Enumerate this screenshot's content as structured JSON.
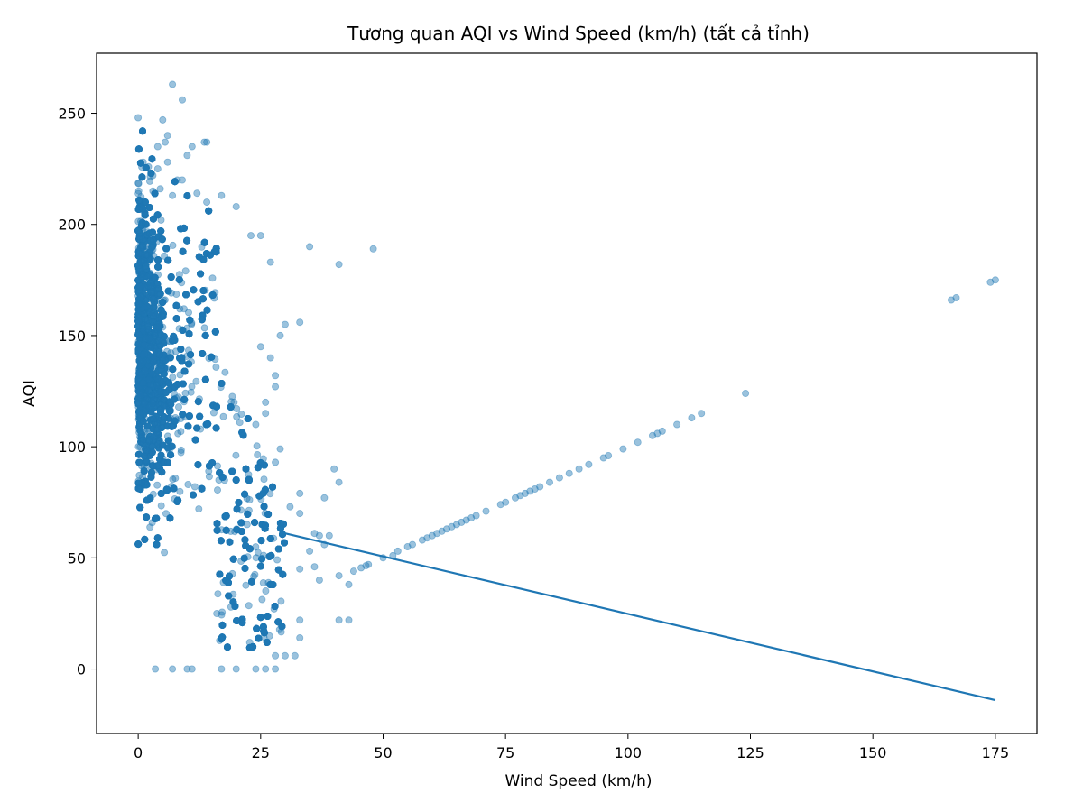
{
  "chart_data": {
    "type": "scatter",
    "title": "Tương quan AQI vs Wind Speed (km/h) (tất cả tỉnh)",
    "xlabel": "Wind Speed (km/h)",
    "ylabel": "AQI",
    "xlim": [
      -8.5,
      183.5
    ],
    "ylim": [
      -29,
      277
    ],
    "xticks": [
      0,
      25,
      50,
      75,
      100,
      125,
      150,
      175
    ],
    "yticks": [
      0,
      50,
      100,
      150,
      200,
      250
    ],
    "grid": false,
    "legend": "none",
    "point_color": "#1f77b4",
    "point_alpha": 0.45,
    "line_color": "#1f77b4",
    "trend_line": {
      "x": [
        30,
        175
      ],
      "y": [
        61,
        -14
      ]
    },
    "dense_cluster": {
      "x_range": [
        0,
        32
      ],
      "y_range": [
        0,
        265
      ],
      "estimated_points": 9000
    },
    "points": [
      [
        0,
        248
      ],
      [
        7,
        263
      ],
      [
        9,
        256
      ],
      [
        5,
        247
      ],
      [
        6,
        240
      ],
      [
        5.5,
        237
      ],
      [
        14,
        237
      ],
      [
        13.5,
        237
      ],
      [
        4,
        235
      ],
      [
        11,
        235
      ],
      [
        10,
        231
      ],
      [
        6,
        228
      ],
      [
        1,
        228
      ],
      [
        4,
        225
      ],
      [
        3,
        222
      ],
      [
        8,
        220
      ],
      [
        9,
        220
      ],
      [
        4.5,
        216
      ],
      [
        3,
        215
      ],
      [
        12,
        214
      ],
      [
        17,
        213
      ],
      [
        7,
        213
      ],
      [
        14,
        210
      ],
      [
        20,
        208
      ],
      [
        25,
        195
      ],
      [
        23,
        195
      ],
      [
        35,
        190
      ],
      [
        48,
        189
      ],
      [
        41,
        182
      ],
      [
        27,
        183
      ],
      [
        33,
        156
      ],
      [
        30,
        155
      ],
      [
        29,
        150
      ],
      [
        25,
        145
      ],
      [
        27,
        140
      ],
      [
        28,
        132
      ],
      [
        28,
        127
      ],
      [
        26,
        120
      ],
      [
        26,
        115
      ],
      [
        24,
        110
      ],
      [
        29,
        99
      ],
      [
        28,
        93
      ],
      [
        40,
        90
      ],
      [
        38,
        77
      ],
      [
        41,
        84
      ],
      [
        33,
        79
      ],
      [
        31,
        73
      ],
      [
        33,
        70
      ],
      [
        36,
        61
      ],
      [
        37,
        60
      ],
      [
        39,
        60
      ],
      [
        38,
        56
      ],
      [
        35,
        53
      ],
      [
        36,
        46
      ],
      [
        33,
        45
      ],
      [
        37,
        40
      ],
      [
        41,
        42
      ],
      [
        43,
        38
      ],
      [
        41,
        22
      ],
      [
        43,
        22
      ],
      [
        33,
        22
      ],
      [
        33,
        14
      ],
      [
        30,
        6
      ],
      [
        28,
        6
      ],
      [
        32,
        6
      ],
      [
        26,
        0
      ],
      [
        28,
        0
      ],
      [
        24,
        0
      ],
      [
        20,
        0
      ],
      [
        17,
        0
      ],
      [
        10,
        0
      ],
      [
        11,
        0
      ],
      [
        7,
        0
      ],
      [
        3.5,
        0
      ],
      [
        44,
        44
      ],
      [
        45.5,
        45.5
      ],
      [
        46.5,
        46.5
      ],
      [
        47,
        47
      ],
      [
        50,
        50
      ],
      [
        52,
        51
      ],
      [
        53,
        53
      ],
      [
        55,
        55
      ],
      [
        56,
        56
      ],
      [
        58,
        58
      ],
      [
        59,
        59
      ],
      [
        60,
        60
      ],
      [
        61,
        61
      ],
      [
        62,
        62
      ],
      [
        63,
        63
      ],
      [
        64,
        64
      ],
      [
        65,
        65
      ],
      [
        66,
        66
      ],
      [
        67,
        67
      ],
      [
        68,
        68
      ],
      [
        69,
        69
      ],
      [
        71,
        71
      ],
      [
        74,
        74
      ],
      [
        75,
        75
      ],
      [
        77,
        77
      ],
      [
        78,
        78
      ],
      [
        79,
        79
      ],
      [
        80,
        80
      ],
      [
        81,
        81
      ],
      [
        82,
        82
      ],
      [
        84,
        84
      ],
      [
        86,
        86
      ],
      [
        88,
        88
      ],
      [
        90,
        90
      ],
      [
        92,
        92
      ],
      [
        95,
        95
      ],
      [
        96,
        96
      ],
      [
        99,
        99
      ],
      [
        102,
        102
      ],
      [
        105,
        105
      ],
      [
        106,
        106
      ],
      [
        107,
        107
      ],
      [
        110,
        110
      ],
      [
        113,
        113
      ],
      [
        115,
        115
      ],
      [
        124,
        124
      ],
      [
        166,
        166
      ],
      [
        167,
        167
      ],
      [
        174,
        174
      ],
      [
        175,
        175
      ]
    ]
  }
}
